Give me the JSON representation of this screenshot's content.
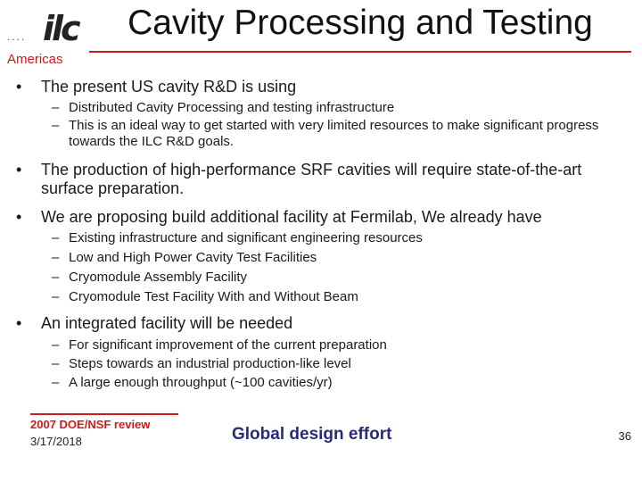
{
  "logo": {
    "dots": "....",
    "mark": "ilc",
    "subtitle": "Americas"
  },
  "title": "Cavity Processing and Testing",
  "bullets": [
    {
      "text": "The present US cavity R&D is using",
      "subs": [
        "Distributed Cavity Processing and testing infrastructure",
        "This is an ideal way to get started with very limited resources to make significant progress towards the ILC R&D goals."
      ]
    },
    {
      "text": "The production of high-performance SRF cavities will require state-of-the-art surface preparation.",
      "subs": []
    },
    {
      "text": "We are proposing build additional facility at Fermilab, We already have",
      "subs": [
        "Existing infrastructure and significant engineering resources",
        "Low and High Power Cavity Test Facilities",
        "Cryomodule Assembly Facility",
        "Cryomodule Test Facility With and Without Beam"
      ]
    },
    {
      "text": "An integrated facility will be needed",
      "subs": [
        "For significant improvement of the current preparation",
        "Steps towards an industrial production-like level",
        "A large enough throughput (~100 cavities/yr)"
      ]
    }
  ],
  "footer": {
    "review": "2007 DOE/NSF review",
    "date": "3/17/2018",
    "center": "Global design effort",
    "page": "36"
  },
  "colors": {
    "accent": "#c81e1e",
    "footer_center": "#2a2a78"
  }
}
